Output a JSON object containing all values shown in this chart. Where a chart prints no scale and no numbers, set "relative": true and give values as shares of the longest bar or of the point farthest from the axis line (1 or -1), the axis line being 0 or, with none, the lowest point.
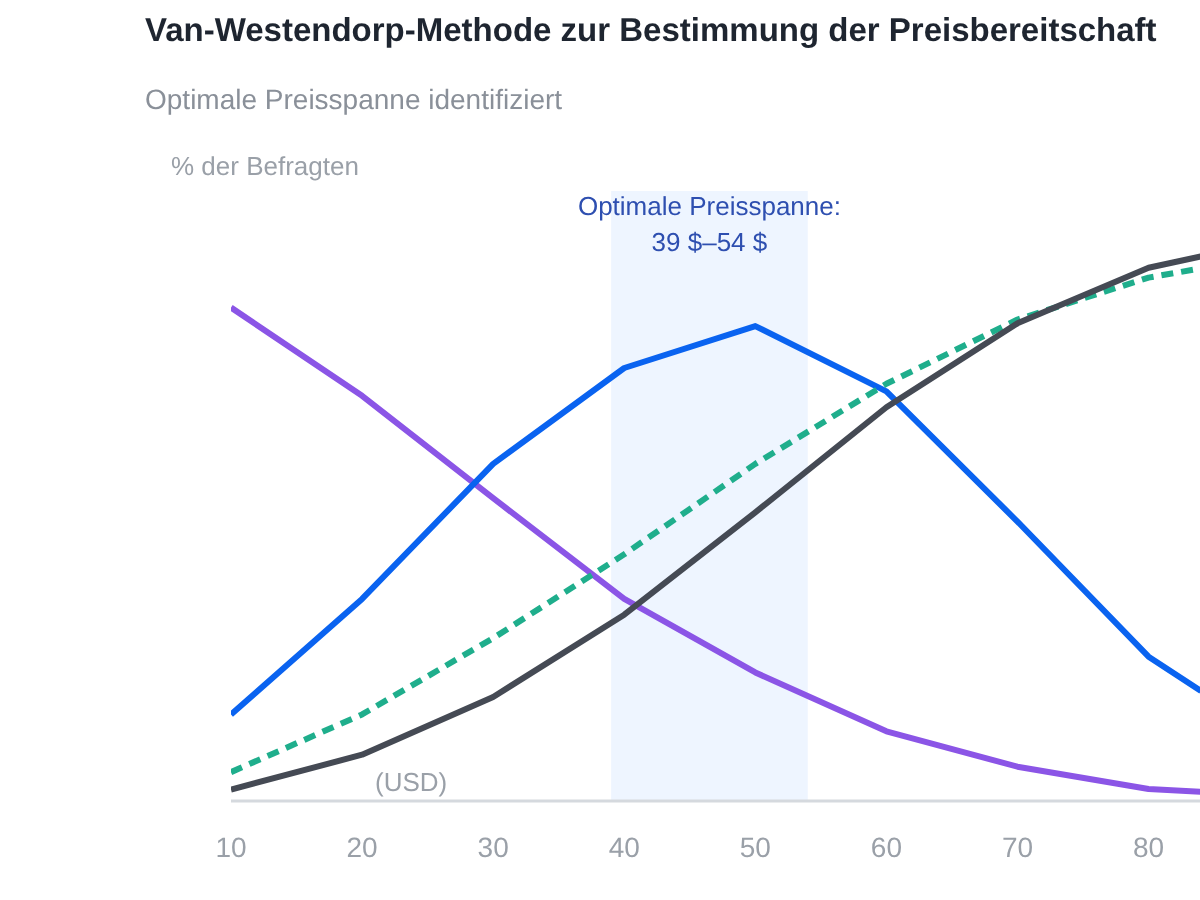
{
  "chart_data": {
    "type": "line",
    "title": "Van-Westendorp-Methode zur Bestimmung der Preisbereitschaft",
    "subtitle": "Optimale Preisspanne identifiziert",
    "ylabel": "% der Befragten",
    "xlabel": "(USD)",
    "relative": true,
    "x": [
      10,
      20,
      30,
      40,
      50,
      60,
      70,
      80,
      84
    ],
    "xlim": [
      10,
      84
    ],
    "xticks": [
      10,
      20,
      30,
      40,
      50,
      60,
      70,
      80
    ],
    "marker": "none",
    "series": [
      {
        "color": "#8b55e6",
        "values": [
          0.906,
          0.744,
          0.556,
          0.371,
          0.236,
          0.128,
          0.063,
          0.022,
          0.017
        ]
      },
      {
        "color": "#0a63f0",
        "values": [
          0.159,
          0.371,
          0.619,
          0.795,
          0.872,
          0.752,
          0.513,
          0.265,
          0.202
        ]
      },
      {
        "color": "#1fae8c",
        "line_style": "dashed",
        "values": [
          0.053,
          0.159,
          0.299,
          0.453,
          0.619,
          0.766,
          0.884,
          0.961,
          0.978
        ]
      },
      {
        "color": "#454a54",
        "values": [
          0.021,
          0.085,
          0.191,
          0.342,
          0.53,
          0.723,
          0.877,
          0.979,
          1.0
        ]
      }
    ],
    "bands": [
      {
        "axis": "x",
        "from": 39,
        "to": 54,
        "label": "Optimale Preisspanne:\n39 $–54 $",
        "color": "#eef5ff"
      }
    ]
  }
}
